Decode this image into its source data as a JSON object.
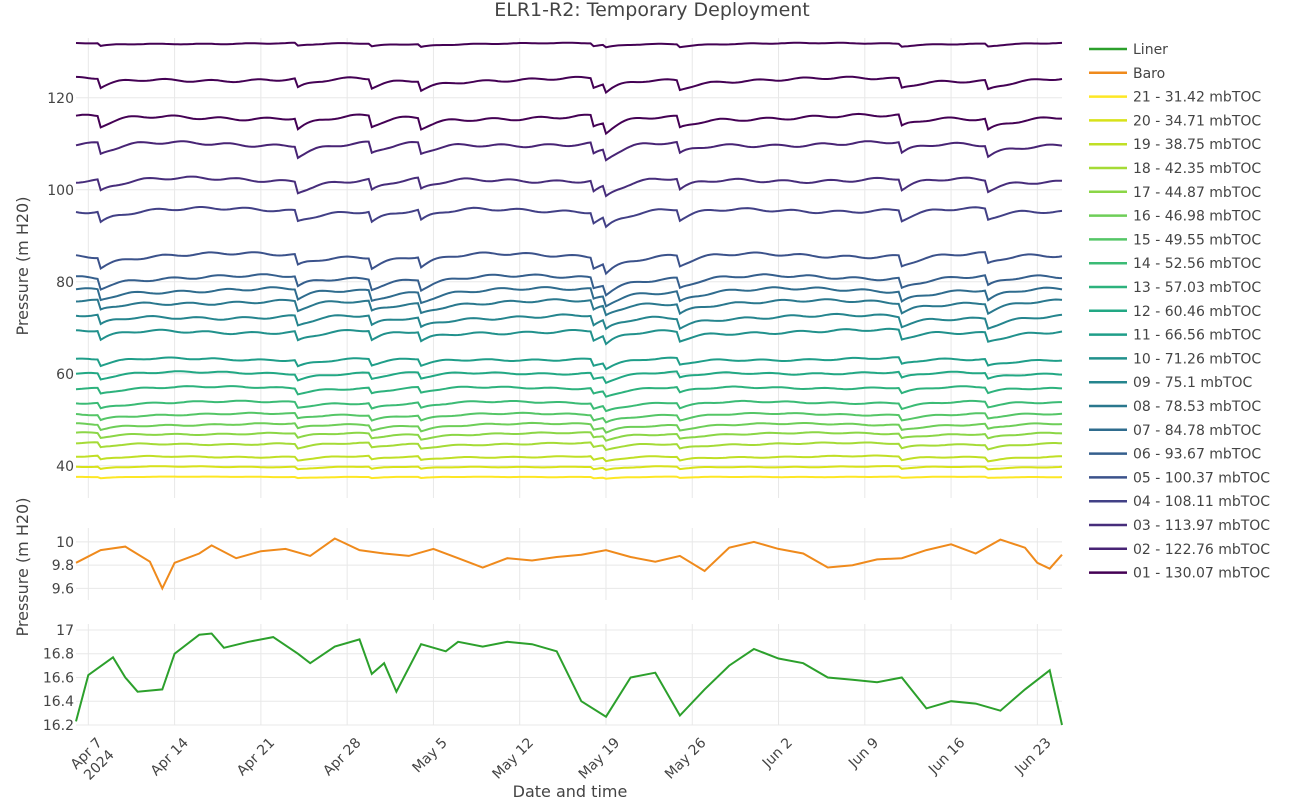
{
  "chart_data": [
    {
      "type": "line",
      "panel": "top",
      "title": "ELR1-R2: Temporary Deployment",
      "ylabel": "Pressure (m H20)",
      "xlabel": "",
      "ylim": [
        133,
        33
      ],
      "y_reversed": true,
      "yticks": [
        40,
        60,
        80,
        100,
        120
      ],
      "x_range": [
        "2024-04-06",
        "2024-06-25"
      ],
      "grid": true,
      "series": [
        {
          "name": "21 - 31.42 mbTOC",
          "color": "#fde725",
          "base": 37.6,
          "amp": 0.25
        },
        {
          "name": "20 - 34.71 mbTOC",
          "color": "#d8e219",
          "base": 39.8,
          "amp": 0.5
        },
        {
          "name": "19 - 38.75 mbTOC",
          "color": "#c0df25",
          "base": 42.0,
          "amp": 0.8
        },
        {
          "name": "18 - 42.35 mbTOC",
          "color": "#a5db36",
          "base": 44.8,
          "amp": 1.0
        },
        {
          "name": "17 - 44.87 mbTOC",
          "color": "#8bd646",
          "base": 47.0,
          "amp": 1.0
        },
        {
          "name": "16 - 46.98 mbTOC",
          "color": "#6ece58",
          "base": 49.0,
          "amp": 1.1
        },
        {
          "name": "15 - 49.55 mbTOC",
          "color": "#55c667",
          "base": 51.2,
          "amp": 1.1
        },
        {
          "name": "14 - 52.56 mbTOC",
          "color": "#3bbb75",
          "base": 53.8,
          "amp": 1.2
        },
        {
          "name": "13 - 57.03 mbTOC",
          "color": "#2db27d",
          "base": 57.0,
          "amp": 1.2
        },
        {
          "name": "12 - 60.46 mbTOC",
          "color": "#22a884",
          "base": 60.2,
          "amp": 1.3
        },
        {
          "name": "11 - 66.56 mbTOC",
          "color": "#1f9e89",
          "base": 63.2,
          "amp": 1.4
        },
        {
          "name": "10 - 71.26 mbTOC",
          "color": "#21918c",
          "base": 69.2,
          "amp": 2.0
        },
        {
          "name": "09 - 75.1 mbTOC",
          "color": "#25858e",
          "base": 72.4,
          "amp": 2.1
        },
        {
          "name": "08 - 78.53 mbTOC",
          "color": "#2a788e",
          "base": 75.6,
          "amp": 2.1
        },
        {
          "name": "07 - 84.78 mbTOC",
          "color": "#2f6c8e",
          "base": 78.2,
          "amp": 2.2
        },
        {
          "name": "06 - 93.67 mbTOC",
          "color": "#355f8d",
          "base": 81.0,
          "amp": 2.2
        },
        {
          "name": "05 - 100.37 mbTOC",
          "color": "#3b528b",
          "base": 85.8,
          "amp": 2.3
        },
        {
          "name": "04 - 108.11 mbTOC",
          "color": "#424086",
          "base": 95.6,
          "amp": 2.3
        },
        {
          "name": "03 - 113.97 mbTOC",
          "color": "#472d7b",
          "base": 102.2,
          "amp": 2.4
        },
        {
          "name": "02 - 122.76 mbTOC",
          "color": "#482475",
          "base": 110.0,
          "amp": 2.4
        },
        {
          "name": "01 - 130.07 mbTOC",
          "color": "#440154",
          "base": 115.8,
          "amp": 2.4
        }
      ],
      "extra_series": [
        {
          "name": "01 - 130.07 mbTOC (lower)",
          "color": "#440154",
          "base": 124.0,
          "amp": 2.0
        },
        {
          "name": "bottom",
          "color": "#440154",
          "base": 131.8,
          "amp": 0.6
        }
      ]
    },
    {
      "type": "line",
      "panel": "middle",
      "ylabel": "Pressure (m H20)",
      "ylim": [
        9.5,
        10.12
      ],
      "yticks": [
        9.6,
        9.8,
        10
      ],
      "ytick_labels": [
        "9.6",
        "9.8",
        "10"
      ],
      "series": [
        {
          "name": "Baro",
          "color": "#ef8a1c",
          "x": [
            "2024-04-06",
            "2024-04-08",
            "2024-04-10",
            "2024-04-12",
            "2024-04-13",
            "2024-04-14",
            "2024-04-16",
            "2024-04-17",
            "2024-04-19",
            "2024-04-21",
            "2024-04-23",
            "2024-04-25",
            "2024-04-27",
            "2024-04-29",
            "2024-05-01",
            "2024-05-03",
            "2024-05-05",
            "2024-05-07",
            "2024-05-09",
            "2024-05-11",
            "2024-05-13",
            "2024-05-15",
            "2024-05-17",
            "2024-05-19",
            "2024-05-21",
            "2024-05-23",
            "2024-05-25",
            "2024-05-27",
            "2024-05-29",
            "2024-05-31",
            "2024-06-02",
            "2024-06-04",
            "2024-06-06",
            "2024-06-08",
            "2024-06-10",
            "2024-06-12",
            "2024-06-14",
            "2024-06-16",
            "2024-06-18",
            "2024-06-20",
            "2024-06-22",
            "2024-06-23",
            "2024-06-24",
            "2024-06-25"
          ],
          "values": [
            9.82,
            9.93,
            9.96,
            9.83,
            9.6,
            9.82,
            9.9,
            9.97,
            9.86,
            9.92,
            9.94,
            9.88,
            10.03,
            9.93,
            9.9,
            9.88,
            9.94,
            9.86,
            9.78,
            9.86,
            9.84,
            9.87,
            9.89,
            9.93,
            9.87,
            9.83,
            9.88,
            9.75,
            9.95,
            10.0,
            9.94,
            9.9,
            9.78,
            9.8,
            9.85,
            9.86,
            9.93,
            9.98,
            9.9,
            10.02,
            9.95,
            9.82,
            9.77,
            9.89
          ]
        }
      ]
    },
    {
      "type": "line",
      "panel": "bottom",
      "ylabel": "",
      "xlabel": "Date and time",
      "ylim": [
        16.2,
        17.05
      ],
      "yticks": [
        16.2,
        16.4,
        16.6,
        16.8,
        17
      ],
      "ytick_labels": [
        "16.2",
        "16.4",
        "16.6",
        "16.8",
        "17"
      ],
      "x_ticks": [
        "2024-04-07",
        "2024-04-14",
        "2024-04-21",
        "2024-04-28",
        "2024-05-05",
        "2024-05-12",
        "2024-05-19",
        "2024-05-26",
        "2024-06-02",
        "2024-06-09",
        "2024-06-16",
        "2024-06-23"
      ],
      "x_tick_labels": [
        "Apr 7\n2024",
        "Apr 14",
        "Apr 21",
        "Apr 28",
        "May 5",
        "May 12",
        "May 19",
        "May 26",
        "Jun 2",
        "Jun 9",
        "Jun 16",
        "Jun 23"
      ],
      "series": [
        {
          "name": "Liner",
          "color": "#2ca02c",
          "x": [
            "2024-04-06",
            "2024-04-07",
            "2024-04-09",
            "2024-04-10",
            "2024-04-11",
            "2024-04-13",
            "2024-04-14",
            "2024-04-16",
            "2024-04-17",
            "2024-04-18",
            "2024-04-20",
            "2024-04-22",
            "2024-04-24",
            "2024-04-25",
            "2024-04-27",
            "2024-04-29",
            "2024-04-30",
            "2024-05-01",
            "2024-05-02",
            "2024-05-04",
            "2024-05-06",
            "2024-05-07",
            "2024-05-09",
            "2024-05-11",
            "2024-05-13",
            "2024-05-15",
            "2024-05-17",
            "2024-05-19",
            "2024-05-21",
            "2024-05-23",
            "2024-05-25",
            "2024-05-27",
            "2024-05-29",
            "2024-05-31",
            "2024-06-02",
            "2024-06-04",
            "2024-06-06",
            "2024-06-08",
            "2024-06-10",
            "2024-06-12",
            "2024-06-14",
            "2024-06-16",
            "2024-06-18",
            "2024-06-20",
            "2024-06-22",
            "2024-06-24",
            "2024-06-25"
          ],
          "values": [
            16.23,
            16.62,
            16.77,
            16.6,
            16.48,
            16.5,
            16.8,
            16.96,
            16.97,
            16.85,
            16.9,
            16.94,
            16.8,
            16.72,
            16.86,
            16.92,
            16.63,
            16.72,
            16.48,
            16.88,
            16.82,
            16.9,
            16.86,
            16.9,
            16.88,
            16.82,
            16.4,
            16.27,
            16.6,
            16.64,
            16.28,
            16.5,
            16.7,
            16.84,
            16.76,
            16.72,
            16.6,
            16.58,
            16.56,
            16.6,
            16.34,
            16.4,
            16.38,
            16.32,
            16.5,
            16.66,
            16.2
          ]
        }
      ]
    }
  ],
  "legend": [
    {
      "label": "Liner",
      "color": "#2ca02c"
    },
    {
      "label": "Baro",
      "color": "#ef8a1c"
    },
    {
      "label": "21 - 31.42 mbTOC",
      "color": "#fde725"
    },
    {
      "label": "20 - 34.71 mbTOC",
      "color": "#d8e219"
    },
    {
      "label": "19 - 38.75 mbTOC",
      "color": "#c0df25"
    },
    {
      "label": "18 - 42.35 mbTOC",
      "color": "#a5db36"
    },
    {
      "label": "17 - 44.87 mbTOC",
      "color": "#8bd646"
    },
    {
      "label": "16 - 46.98 mbTOC",
      "color": "#6ece58"
    },
    {
      "label": "15 - 49.55 mbTOC",
      "color": "#55c667"
    },
    {
      "label": "14 - 52.56 mbTOC",
      "color": "#3bbb75"
    },
    {
      "label": "13 - 57.03 mbTOC",
      "color": "#2db27d"
    },
    {
      "label": "12 - 60.46 mbTOC",
      "color": "#22a884"
    },
    {
      "label": "11 - 66.56 mbTOC",
      "color": "#1f9e89"
    },
    {
      "label": "10 - 71.26 mbTOC",
      "color": "#21918c"
    },
    {
      "label": "09 - 75.1 mbTOC",
      "color": "#25858e"
    },
    {
      "label": "08 - 78.53 mbTOC",
      "color": "#2a788e"
    },
    {
      "label": "07 - 84.78 mbTOC",
      "color": "#2f6c8e"
    },
    {
      "label": "06 - 93.67 mbTOC",
      "color": "#355f8d"
    },
    {
      "label": "05 - 100.37 mbTOC",
      "color": "#3b528b"
    },
    {
      "label": "04 - 108.11 mbTOC",
      "color": "#424086"
    },
    {
      "label": "03 - 113.97 mbTOC",
      "color": "#472d7b"
    },
    {
      "label": "02 - 122.76 mbTOC",
      "color": "#482475"
    },
    {
      "label": "01 - 130.07 mbTOC",
      "color": "#440154"
    }
  ],
  "legend_placement": "right",
  "event_dates": [
    "2024-04-08",
    "2024-04-24",
    "2024-04-30",
    "2024-05-04",
    "2024-05-18",
    "2024-05-19",
    "2024-05-25",
    "2024-06-12",
    "2024-06-19"
  ]
}
